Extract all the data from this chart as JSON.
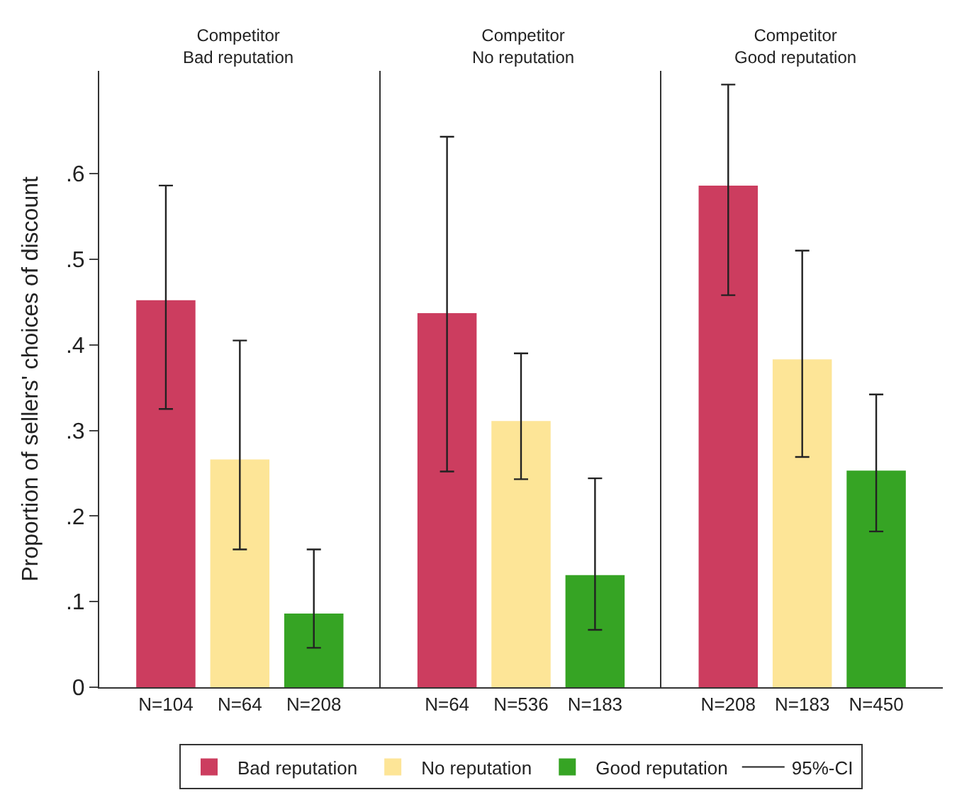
{
  "chart_data": [
    {
      "type": "bar",
      "title": "Competitor\nBad reputation",
      "ylabel": "Proportion of sellers' choices of discount",
      "categories": [
        "N=104",
        "N=64",
        "N=208"
      ],
      "series": [
        {
          "name": "Bad reputation",
          "color": "#cc3d5f",
          "values": [
            0.452,
            null,
            null
          ],
          "errors": [
            [
              0.325,
              0.586
            ],
            null,
            null
          ]
        },
        {
          "name": "No reputation",
          "color": "#fde597",
          "values": [
            null,
            0.266,
            null
          ],
          "errors": [
            null,
            [
              0.161,
              0.405
            ],
            null
          ]
        },
        {
          "name": "Good reputation",
          "color": "#36a424",
          "values": [
            null,
            null,
            0.086
          ],
          "errors": [
            null,
            null,
            [
              0.046,
              0.161
            ]
          ]
        }
      ],
      "ylim": [
        0,
        0.72
      ],
      "yticks": [
        0,
        {
          "value": 0.1,
          "label": ".1"
        },
        {
          "value": 0.2,
          "label": ".2"
        },
        {
          "value": 0.3,
          "label": ".3"
        },
        {
          "value": 0.4,
          "label": ".4"
        },
        {
          "value": 0.5,
          "label": ".5"
        },
        {
          "value": 0.6,
          "label": ".6"
        }
      ],
      "legend": "bottom",
      "annotations": [
        "95%-CI"
      ]
    },
    {
      "type": "bar",
      "title": "Competitor\nNo reputation",
      "categories": [
        "N=64",
        "N=536",
        "N=183"
      ],
      "series": [
        {
          "color": "#cc3d5f",
          "values": [
            0.437,
            null,
            null
          ],
          "errors": [
            [
              0.252,
              0.643
            ],
            null,
            null
          ]
        },
        {
          "color": "#fde597",
          "values": [
            null,
            0.311,
            null
          ],
          "errors": [
            null,
            [
              0.243,
              0.39
            ],
            null
          ]
        },
        {
          "color": "#36a424",
          "values": [
            null,
            null,
            0.131
          ],
          "errors": [
            null,
            null,
            [
              0.067,
              0.244
            ]
          ]
        }
      ],
      "ylim": [
        0,
        0.72
      ],
      "tick_labels": "x"
    },
    {
      "type": "bar",
      "title": "Competitor\nGood reputation",
      "categories": [
        "N=208",
        "N=183",
        "N=450"
      ],
      "series": [
        {
          "color": "#cc3d5f",
          "values": [
            0.586,
            null,
            null
          ],
          "errors": [
            [
              0.458,
              0.704
            ],
            null,
            null
          ]
        },
        {
          "color": "#fde597",
          "values": [
            null,
            0.383,
            null
          ],
          "errors": [
            null,
            [
              0.269,
              0.51
            ],
            null
          ]
        },
        {
          "color": "#36a424",
          "values": [
            null,
            null,
            0.253
          ],
          "errors": [
            null,
            null,
            [
              0.182,
              0.342
            ]
          ]
        }
      ],
      "ylim": [
        0,
        0.72
      ],
      "tick_labels": "x"
    }
  ]
}
